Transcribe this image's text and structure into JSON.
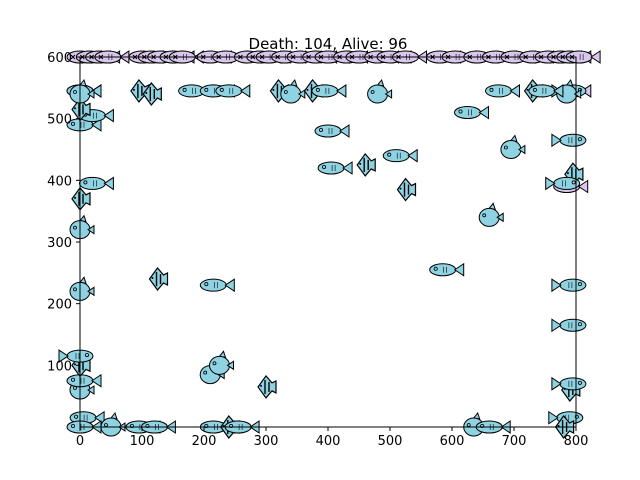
{
  "chart_data": {
    "type": "scatter",
    "title": "Death: 104, Alive: 96",
    "xlabel": "",
    "ylabel": "",
    "xlim": [
      0,
      800
    ],
    "ylim": [
      0,
      600
    ],
    "xticks": [
      "0",
      "100",
      "200",
      "300",
      "400",
      "500",
      "600",
      "700",
      "800"
    ],
    "yticks": [
      "100",
      "200",
      "300",
      "400",
      "500",
      "600"
    ],
    "grid": false,
    "colors": {
      "alive": "#8fd3e3",
      "dead": "#d9c6ec",
      "stroke": "#000000",
      "spine": "#000000"
    },
    "alive_fish": [
      {
        "x": 5,
        "y": 15,
        "shape": "flat",
        "dir": 1
      },
      {
        "x": 0,
        "y": 0,
        "shape": "flat",
        "dir": 1
      },
      {
        "x": 0,
        "y": 60,
        "shape": "round",
        "dir": 1
      },
      {
        "x": 0,
        "y": 75,
        "shape": "flat",
        "dir": 1
      },
      {
        "x": 0,
        "y": 100,
        "shape": "angel",
        "dir": 1
      },
      {
        "x": 0,
        "y": 115,
        "shape": "flat",
        "dir": -1
      },
      {
        "x": 0,
        "y": 220,
        "shape": "round",
        "dir": 1
      },
      {
        "x": 0,
        "y": 320,
        "shape": "round",
        "dir": 1
      },
      {
        "x": 0,
        "y": 370,
        "shape": "angel",
        "dir": 1
      },
      {
        "x": 20,
        "y": 395,
        "shape": "flat",
        "dir": 1
      },
      {
        "x": 0,
        "y": 490,
        "shape": "flat",
        "dir": 1
      },
      {
        "x": 20,
        "y": 505,
        "shape": "flat",
        "dir": 1
      },
      {
        "x": 0,
        "y": 515,
        "shape": "angel",
        "dir": 1
      },
      {
        "x": 0,
        "y": 545,
        "shape": "flat",
        "dir": 1
      },
      {
        "x": 0,
        "y": 540,
        "shape": "round",
        "dir": 1
      },
      {
        "x": 50,
        "y": 0,
        "shape": "round",
        "dir": 1
      },
      {
        "x": 95,
        "y": 0,
        "shape": "flat",
        "dir": 1
      },
      {
        "x": 120,
        "y": 0,
        "shape": "flat",
        "dir": 1
      },
      {
        "x": 215,
        "y": 0,
        "shape": "flat",
        "dir": 1
      },
      {
        "x": 240,
        "y": 0,
        "shape": "angel",
        "dir": 1
      },
      {
        "x": 255,
        "y": 0,
        "shape": "flat",
        "dir": 1
      },
      {
        "x": 635,
        "y": 0,
        "shape": "round",
        "dir": 1
      },
      {
        "x": 660,
        "y": 0,
        "shape": "flat",
        "dir": 1
      },
      {
        "x": 790,
        "y": 15,
        "shape": "flat",
        "dir": -1
      },
      {
        "x": 780,
        "y": 0,
        "shape": "angel",
        "dir": 1
      },
      {
        "x": 790,
        "y": 60,
        "shape": "angel",
        "dir": 1
      },
      {
        "x": 795,
        "y": 70,
        "shape": "flat",
        "dir": -1
      },
      {
        "x": 795,
        "y": 165,
        "shape": "flat",
        "dir": -1
      },
      {
        "x": 795,
        "y": 230,
        "shape": "flat",
        "dir": -1
      },
      {
        "x": 795,
        "y": 410,
        "shape": "angel",
        "dir": 1
      },
      {
        "x": 795,
        "y": 465,
        "shape": "flat",
        "dir": -1
      },
      {
        "x": 795,
        "y": 545,
        "shape": "flat",
        "dir": -1
      },
      {
        "x": 785,
        "y": 540,
        "shape": "round",
        "dir": 1
      },
      {
        "x": 125,
        "y": 240,
        "shape": "angel",
        "dir": 1
      },
      {
        "x": 215,
        "y": 230,
        "shape": "flat",
        "dir": 1
      },
      {
        "x": 210,
        "y": 85,
        "shape": "round",
        "dir": 1
      },
      {
        "x": 225,
        "y": 100,
        "shape": "round",
        "dir": 1
      },
      {
        "x": 300,
        "y": 65,
        "shape": "angel",
        "dir": 1
      },
      {
        "x": 95,
        "y": 545,
        "shape": "angel",
        "dir": 1
      },
      {
        "x": 115,
        "y": 540,
        "shape": "angel",
        "dir": 1
      },
      {
        "x": 180,
        "y": 545,
        "shape": "flat",
        "dir": 1
      },
      {
        "x": 215,
        "y": 545,
        "shape": "flat",
        "dir": 1
      },
      {
        "x": 240,
        "y": 545,
        "shape": "flat",
        "dir": 1
      },
      {
        "x": 320,
        "y": 545,
        "shape": "angel",
        "dir": 1
      },
      {
        "x": 340,
        "y": 540,
        "shape": "round",
        "dir": 1
      },
      {
        "x": 375,
        "y": 545,
        "shape": "angel",
        "dir": 1
      },
      {
        "x": 395,
        "y": 545,
        "shape": "flat",
        "dir": 1
      },
      {
        "x": 400,
        "y": 480,
        "shape": "flat",
        "dir": 1
      },
      {
        "x": 405,
        "y": 420,
        "shape": "flat",
        "dir": 1
      },
      {
        "x": 460,
        "y": 425,
        "shape": "angel",
        "dir": 1
      },
      {
        "x": 480,
        "y": 540,
        "shape": "round",
        "dir": 1
      },
      {
        "x": 510,
        "y": 440,
        "shape": "flat",
        "dir": 1
      },
      {
        "x": 525,
        "y": 385,
        "shape": "angel",
        "dir": 1
      },
      {
        "x": 585,
        "y": 255,
        "shape": "flat",
        "dir": 1
      },
      {
        "x": 625,
        "y": 510,
        "shape": "flat",
        "dir": 1
      },
      {
        "x": 660,
        "y": 340,
        "shape": "round",
        "dir": 1
      },
      {
        "x": 675,
        "y": 545,
        "shape": "flat",
        "dir": 1
      },
      {
        "x": 695,
        "y": 450,
        "shape": "round",
        "dir": 1
      },
      {
        "x": 730,
        "y": 545,
        "shape": "angel",
        "dir": 1
      },
      {
        "x": 745,
        "y": 545,
        "shape": "flat",
        "dir": 1
      },
      {
        "x": 785,
        "y": 395,
        "shape": "flat",
        "dir": -1
      }
    ],
    "dead_fish": [
      {
        "x": 0,
        "y": 600
      },
      {
        "x": 15,
        "y": 600
      },
      {
        "x": 30,
        "y": 600
      },
      {
        "x": 45,
        "y": 600
      },
      {
        "x": 100,
        "y": 600
      },
      {
        "x": 115,
        "y": 600
      },
      {
        "x": 130,
        "y": 600
      },
      {
        "x": 150,
        "y": 600
      },
      {
        "x": 165,
        "y": 600
      },
      {
        "x": 210,
        "y": 600
      },
      {
        "x": 235,
        "y": 600
      },
      {
        "x": 270,
        "y": 600
      },
      {
        "x": 290,
        "y": 600
      },
      {
        "x": 305,
        "y": 600
      },
      {
        "x": 330,
        "y": 600
      },
      {
        "x": 355,
        "y": 600
      },
      {
        "x": 380,
        "y": 600
      },
      {
        "x": 400,
        "y": 600
      },
      {
        "x": 430,
        "y": 600
      },
      {
        "x": 450,
        "y": 600
      },
      {
        "x": 480,
        "y": 600
      },
      {
        "x": 500,
        "y": 600
      },
      {
        "x": 525,
        "y": 600
      },
      {
        "x": 580,
        "y": 600
      },
      {
        "x": 605,
        "y": 600
      },
      {
        "x": 640,
        "y": 600
      },
      {
        "x": 670,
        "y": 600
      },
      {
        "x": 700,
        "y": 600
      },
      {
        "x": 730,
        "y": 600
      },
      {
        "x": 755,
        "y": 600
      },
      {
        "x": 775,
        "y": 600
      },
      {
        "x": 790,
        "y": 600
      },
      {
        "x": 805,
        "y": 600
      },
      {
        "x": 0,
        "y": 545
      },
      {
        "x": 790,
        "y": 545
      },
      {
        "x": 785,
        "y": 390
      }
    ]
  }
}
